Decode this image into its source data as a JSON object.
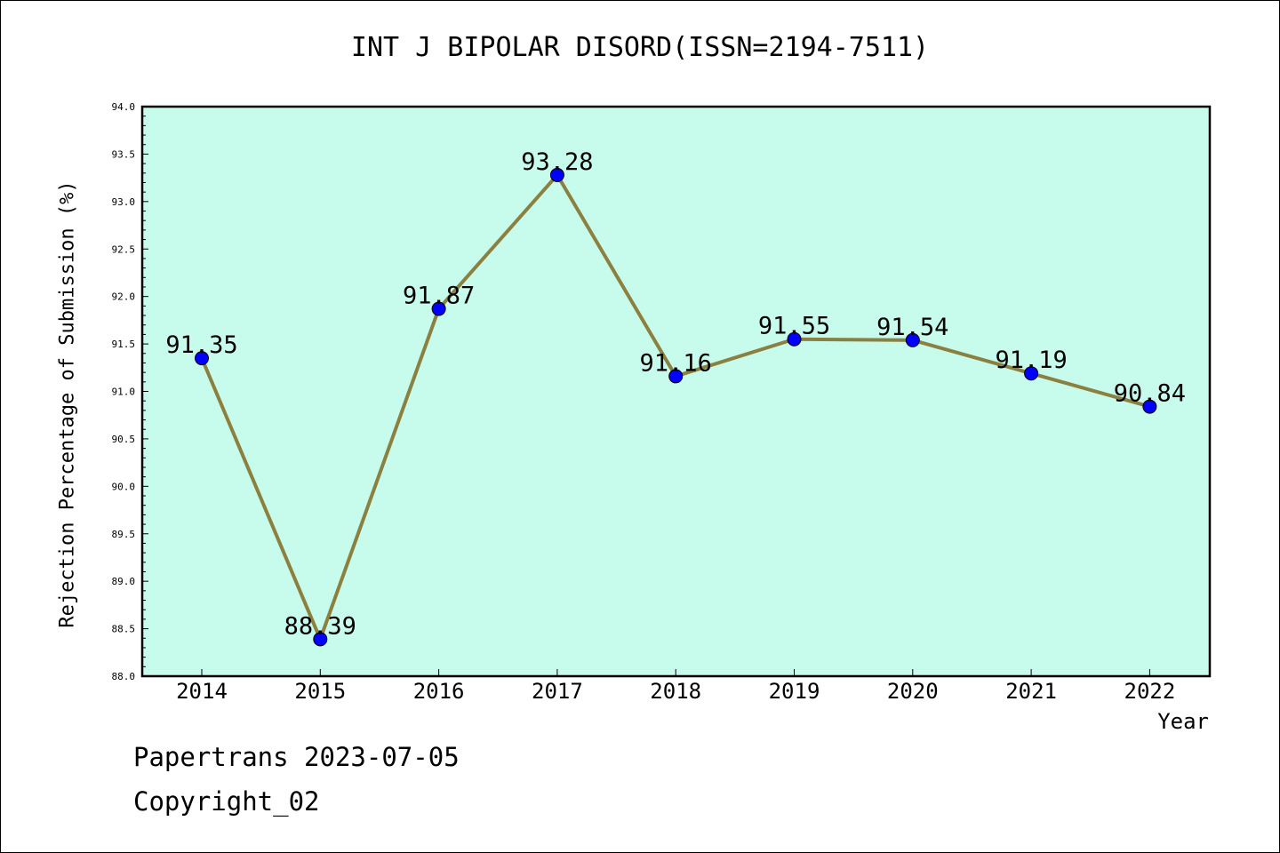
{
  "chart_data": {
    "type": "line",
    "title": "INT J BIPOLAR DISORD(ISSN=2194-7511)",
    "xlabel": "Year",
    "ylabel": "Rejection Percentage of Submission (%)",
    "categories": [
      "2014",
      "2015",
      "2016",
      "2017",
      "2018",
      "2019",
      "2020",
      "2021",
      "2022"
    ],
    "values": [
      91.35,
      88.39,
      91.87,
      93.28,
      91.16,
      91.55,
      91.54,
      91.19,
      90.84
    ],
    "value_labels": [
      "91.35",
      "88.39",
      "91.87",
      "93.28",
      "91.16",
      "91.55",
      "91.54",
      "91.19",
      "90.84"
    ],
    "ylim": [
      88.0,
      94.0
    ],
    "yticks": [
      "88.0",
      "88.5",
      "89.0",
      "89.5",
      "90.0",
      "90.5",
      "91.0",
      "91.5",
      "92.0",
      "92.5",
      "93.0",
      "93.5",
      "94.0"
    ],
    "grid": false,
    "legend": "none",
    "colors": {
      "plot_background": "#c7fcec",
      "line": "#8b8040",
      "marker": "#0000ff"
    }
  },
  "footer": {
    "line1": "Papertrans 2023-07-05",
    "line2": "Copyright_02"
  }
}
